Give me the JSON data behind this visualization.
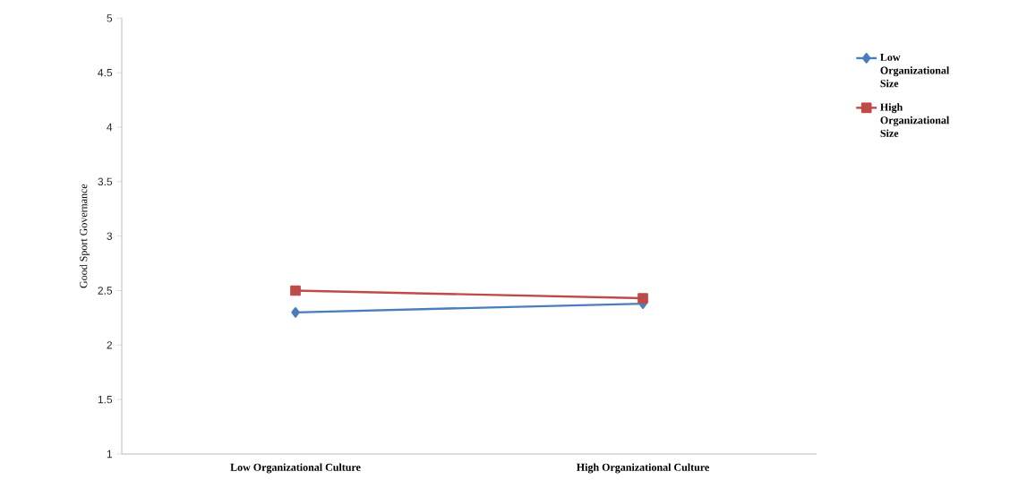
{
  "chart_data": {
    "type": "line",
    "ylabel": "Good Sport Governance",
    "categories": [
      "Low Organizational Culture",
      "High Organizational Culture"
    ],
    "series": [
      {
        "name": "Low Organizational Size",
        "color": "#4a7ebb",
        "marker": "diamond",
        "values": [
          2.3,
          2.38
        ]
      },
      {
        "name": "High Organizational Size",
        "color": "#be4b48",
        "marker": "square",
        "values": [
          2.5,
          2.43
        ]
      }
    ],
    "ylim": [
      1,
      5
    ],
    "yticks": [
      1,
      1.5,
      2,
      2.5,
      3,
      3.5,
      4,
      4.5,
      5
    ],
    "grid": false,
    "legend": "right",
    "line_style": "solid"
  }
}
